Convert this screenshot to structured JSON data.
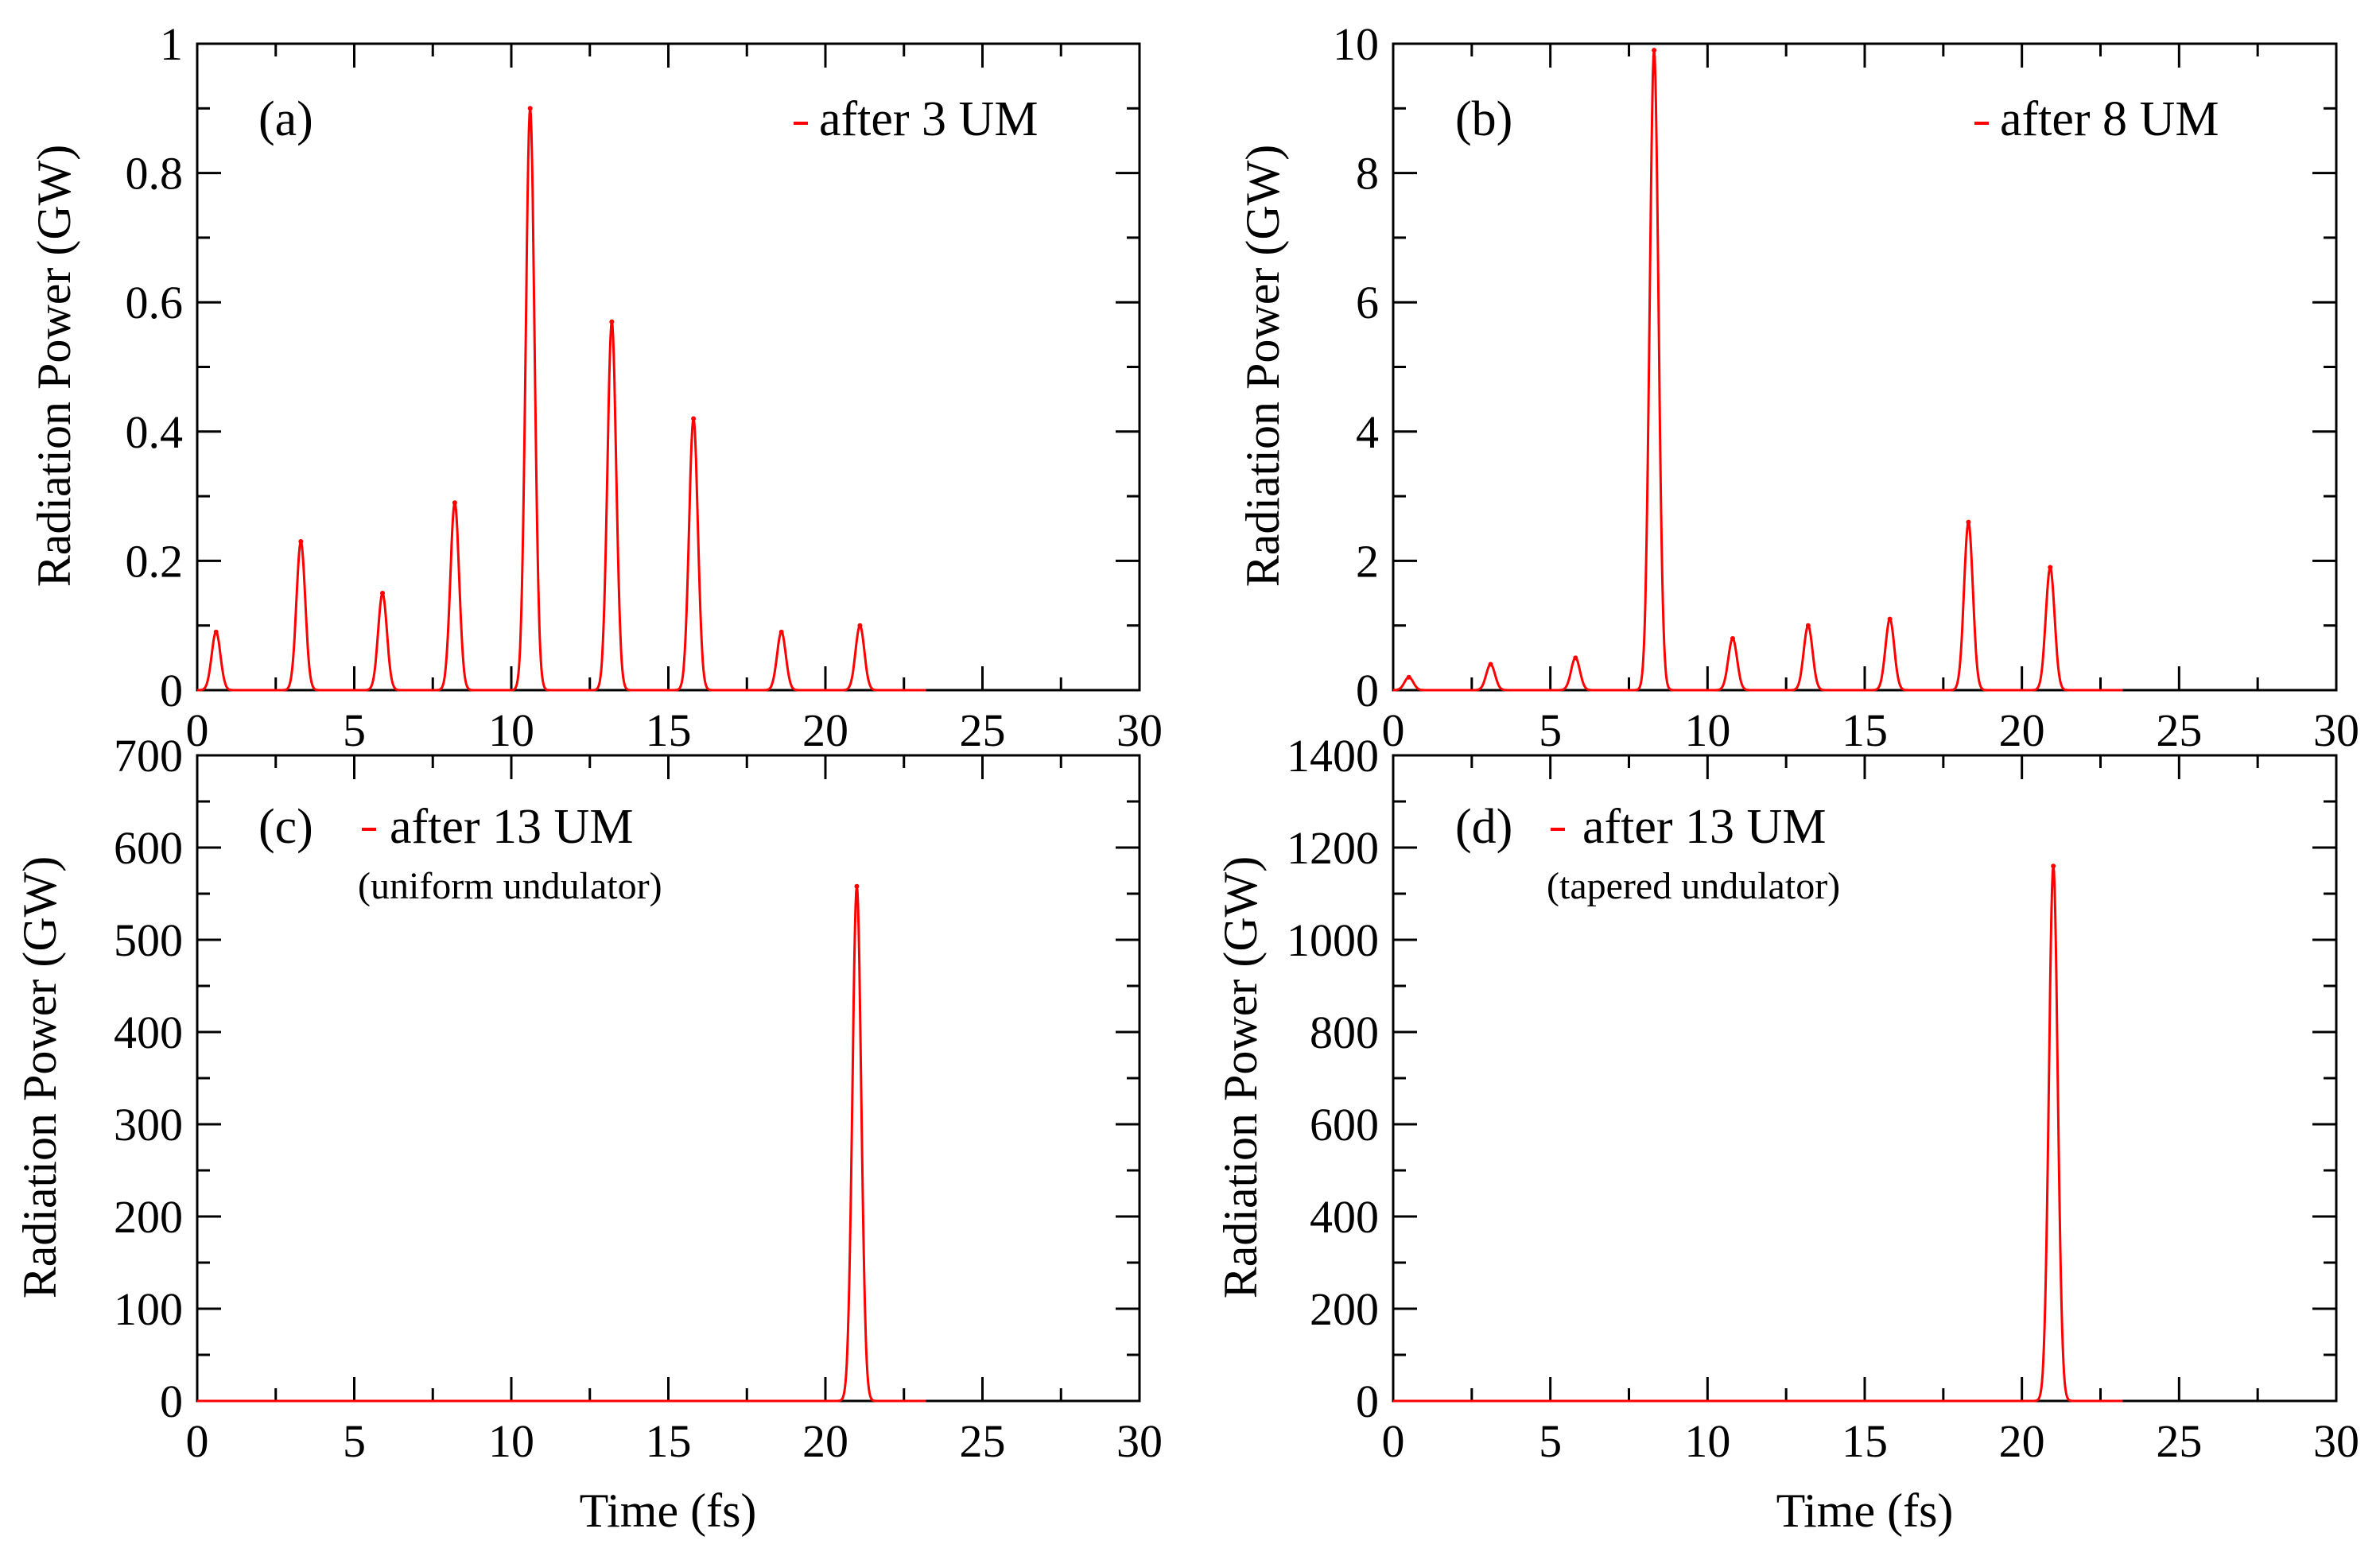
{
  "figure": {
    "xlabel": "Time (fs)",
    "ylabel": "Radiation Power (GW)"
  },
  "chart_data": [
    {
      "type": "line",
      "panel": "(a)",
      "legend": "after 3 UM",
      "note": "",
      "color": "#ff0000",
      "xlim": [
        0,
        30
      ],
      "ylim": [
        0,
        1
      ],
      "xticks": [
        "0",
        "5",
        "10",
        "15",
        "20",
        "25",
        "30"
      ],
      "yticks": [
        {
          "value": 0,
          "label": "0"
        },
        {
          "value": 0.2,
          "label": "0.2"
        },
        {
          "value": 0.4,
          "label": "0.4"
        },
        {
          "value": 0.6,
          "label": "0.6"
        },
        {
          "value": 0.8,
          "label": "0.8"
        },
        {
          "value": 1,
          "label": "1"
        }
      ],
      "peaks": [
        {
          "t": 0.6,
          "p": 0.09
        },
        {
          "t": 3.3,
          "p": 0.23
        },
        {
          "t": 5.9,
          "p": 0.15
        },
        {
          "t": 8.2,
          "p": 0.29
        },
        {
          "t": 10.6,
          "p": 0.9
        },
        {
          "t": 13.2,
          "p": 0.57
        },
        {
          "t": 15.8,
          "p": 0.42
        },
        {
          "t": 18.6,
          "p": 0.09
        },
        {
          "t": 21.1,
          "p": 0.1
        }
      ],
      "curve_end": 23.2
    },
    {
      "type": "line",
      "panel": "(b)",
      "legend": "after 8 UM",
      "note": "",
      "color": "#ff0000",
      "xlim": [
        0,
        30
      ],
      "ylim": [
        0,
        10
      ],
      "xticks": [
        "0",
        "5",
        "10",
        "15",
        "20",
        "25",
        "30"
      ],
      "yticks": [
        {
          "value": 0,
          "label": "0"
        },
        {
          "value": 2,
          "label": "2"
        },
        {
          "value": 4,
          "label": "4"
        },
        {
          "value": 6,
          "label": "6"
        },
        {
          "value": 8,
          "label": "8"
        },
        {
          "value": 10,
          "label": "10"
        }
      ],
      "peaks": [
        {
          "t": 0.5,
          "p": 0.2
        },
        {
          "t": 3.1,
          "p": 0.4
        },
        {
          "t": 5.8,
          "p": 0.5
        },
        {
          "t": 8.3,
          "p": 9.9
        },
        {
          "t": 10.8,
          "p": 0.8
        },
        {
          "t": 13.2,
          "p": 1.0
        },
        {
          "t": 15.8,
          "p": 1.1
        },
        {
          "t": 18.3,
          "p": 2.6
        },
        {
          "t": 20.9,
          "p": 1.9
        }
      ],
      "curve_end": 23.2
    },
    {
      "type": "line",
      "panel": "(c)",
      "legend": "after 13 UM",
      "note": "(uniform undulator)",
      "color": "#ff0000",
      "xlim": [
        0,
        30
      ],
      "ylim": [
        0,
        700
      ],
      "xticks": [
        "0",
        "5",
        "10",
        "15",
        "20",
        "25",
        "30"
      ],
      "yticks": [
        {
          "value": 0,
          "label": "0"
        },
        {
          "value": 100,
          "label": "100"
        },
        {
          "value": 200,
          "label": "200"
        },
        {
          "value": 300,
          "label": "300"
        },
        {
          "value": 400,
          "label": "400"
        },
        {
          "value": 500,
          "label": "500"
        },
        {
          "value": 600,
          "label": "600"
        },
        {
          "value": 700,
          "label": "700"
        }
      ],
      "peaks": [
        {
          "t": 21.0,
          "p": 558
        }
      ],
      "curve_end": 23.2
    },
    {
      "type": "line",
      "panel": "(d)",
      "legend": "after 13 UM",
      "note": "(tapered undulator)",
      "color": "#ff0000",
      "xlim": [
        0,
        30
      ],
      "ylim": [
        0,
        1400
      ],
      "xticks": [
        "0",
        "5",
        "10",
        "15",
        "20",
        "25",
        "30"
      ],
      "yticks": [
        {
          "value": 0,
          "label": "0"
        },
        {
          "value": 200,
          "label": "200"
        },
        {
          "value": 400,
          "label": "400"
        },
        {
          "value": 600,
          "label": "600"
        },
        {
          "value": 800,
          "label": "800"
        },
        {
          "value": 1000,
          "label": "1000"
        },
        {
          "value": 1200,
          "label": "1200"
        },
        {
          "value": 1400,
          "label": "1400"
        }
      ],
      "peaks": [
        {
          "t": 21.0,
          "p": 1160
        }
      ],
      "curve_end": 23.2
    }
  ]
}
